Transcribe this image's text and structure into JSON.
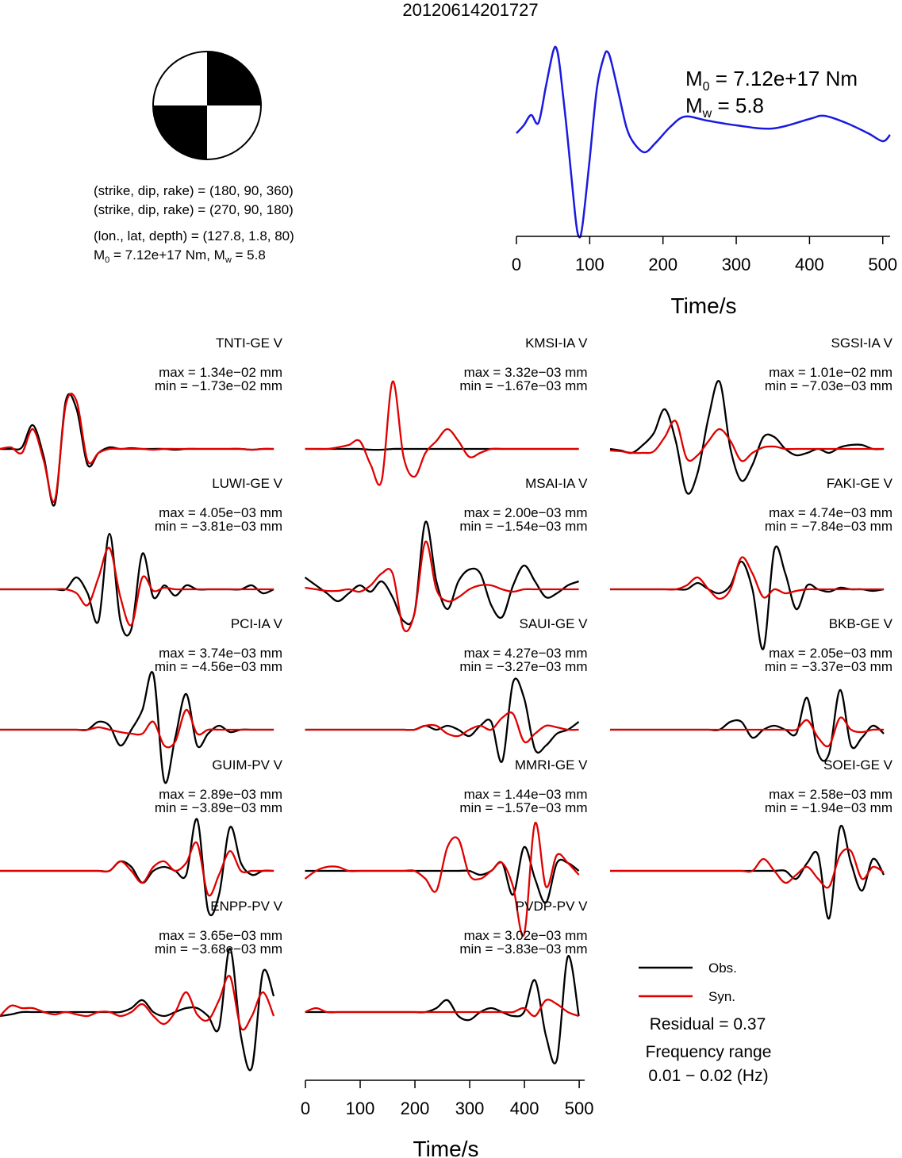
{
  "title": "20120614201727",
  "mechanism_text": [
    "(strike, dip, rake) = (180, 90, 360)",
    "(strike, dip, rake) = (270, 90, 180)",
    "(lon., lat, depth) = (127.8, 1.8, 80)"
  ],
  "moment_text": [
    "M",
    "0",
    " = 7.12e+17 Nm, M",
    "w",
    " = 5.8"
  ],
  "chart_data": [
    {
      "type": "line",
      "color": "#1a1ae0",
      "x": [
        0,
        10,
        20,
        30,
        40,
        50,
        55,
        60,
        70,
        80,
        85,
        90,
        100,
        110,
        120,
        125,
        130,
        140,
        150,
        160,
        175,
        190,
        210,
        230,
        260,
        300,
        350,
        400,
        420,
        450,
        480,
        500,
        510
      ],
      "values": [
        130,
        140,
        153,
        143,
        188,
        233,
        236,
        208,
        123,
        28,
        0,
        13,
        98,
        188,
        228,
        232,
        218,
        178,
        138,
        118,
        106,
        118,
        138,
        151,
        146,
        140,
        136,
        148,
        152,
        143,
        130,
        120,
        128
      ],
      "xlim": [
        0,
        510
      ],
      "xticks": [
        0,
        100,
        200,
        300,
        400,
        500
      ],
      "xlabel": "Time/s",
      "annotations": [
        [
          "M",
          "0",
          " = 7.12e+17 Nm"
        ],
        [
          "M",
          "w",
          " = 5.8"
        ]
      ]
    },
    {
      "type": "waveform",
      "xlim": [
        0,
        510
      ],
      "xticks": [
        0,
        100,
        200,
        300,
        400,
        500
      ],
      "xlabel": "Time/s",
      "x": [
        0,
        20,
        40,
        60,
        80,
        100,
        120,
        140,
        160,
        180,
        200,
        220,
        240,
        260,
        280,
        300,
        320,
        340,
        360,
        380,
        400,
        420,
        440,
        460,
        480,
        500
      ],
      "series": [
        {
          "name": "Obs.",
          "color": "#000000"
        },
        {
          "name": "Syn.",
          "color": "#e00000"
        }
      ],
      "stations": [
        {
          "label": "TNTI-GE V",
          "max": "max = 1.34e−02 mm",
          "min": "min = −1.73e−02 mm",
          "obs": [
            0,
            0,
            2,
            30,
            -10,
            -70,
            60,
            50,
            -20,
            -5,
            2,
            0,
            1,
            0,
            0,
            0,
            -1,
            0,
            0,
            0,
            0,
            0,
            0,
            -1,
            0,
            0
          ],
          "syn": [
            0,
            2,
            -5,
            25,
            -15,
            -65,
            55,
            60,
            -15,
            -5,
            0,
            0,
            0,
            0,
            -1,
            0,
            0,
            0,
            0,
            0,
            0,
            0,
            0,
            -1,
            0,
            0
          ]
        },
        {
          "label": "KMSI-IA V",
          "max": "max = 3.32e−03 mm",
          "min": "min = −1.67e−03 mm",
          "obs": [
            0,
            0,
            0,
            0,
            0,
            0,
            -1,
            -1,
            0,
            0,
            0,
            0,
            0,
            0,
            0,
            0,
            0,
            0,
            0,
            0,
            0,
            0,
            0,
            0,
            0,
            0
          ],
          "syn": [
            0,
            0,
            0,
            2,
            5,
            10,
            -20,
            -40,
            85,
            -10,
            -35,
            -5,
            10,
            25,
            10,
            -10,
            -5,
            0,
            0,
            0,
            0,
            0,
            0,
            0,
            0,
            0
          ]
        },
        {
          "label": "SGSI-IA V",
          "max": "max = 1.01e−02 mm",
          "min": "min = −7.03e−03 mm",
          "obs": [
            0,
            -2,
            -5,
            5,
            20,
            50,
            10,
            -55,
            -30,
            40,
            85,
            0,
            -40,
            -20,
            15,
            15,
            0,
            -8,
            -5,
            0,
            -5,
            2,
            5,
            5,
            0,
            0
          ],
          "syn": [
            -2,
            -3,
            -5,
            -5,
            -3,
            15,
            35,
            -12,
            -8,
            10,
            25,
            10,
            -15,
            -5,
            2,
            3,
            0,
            0,
            0,
            0,
            0,
            0,
            0,
            0,
            0,
            0
          ]
        },
        {
          "label": "LUWI-GE V",
          "max": "max = 4.05e−03 mm",
          "min": "min = −3.81e−03 mm",
          "obs": [
            0,
            0,
            0,
            0,
            0,
            0,
            0,
            15,
            -5,
            -40,
            70,
            -40,
            -50,
            45,
            -10,
            5,
            -8,
            5,
            0,
            0,
            0,
            0,
            0,
            5,
            -5,
            0
          ],
          "syn": [
            0,
            0,
            0,
            0,
            0,
            0,
            0,
            -5,
            -20,
            15,
            52,
            -10,
            -45,
            15,
            -2,
            2,
            0,
            0,
            0,
            0,
            0,
            0,
            0,
            0,
            0,
            0
          ]
        },
        {
          "label": "MSAI-IA V",
          "max": "max = 2.00e−03 mm",
          "min": "min = −1.54e−03 mm",
          "obs": [
            15,
            5,
            -5,
            -15,
            -5,
            5,
            -3,
            10,
            -10,
            -40,
            -30,
            85,
            10,
            -25,
            10,
            25,
            20,
            -20,
            -35,
            5,
            30,
            10,
            -10,
            -5,
            5,
            10
          ],
          "syn": [
            2,
            0,
            -2,
            -2,
            0,
            -3,
            5,
            20,
            20,
            -50,
            -30,
            60,
            0,
            -15,
            -10,
            0,
            5,
            5,
            0,
            -3,
            0,
            0,
            0,
            0,
            0,
            0
          ]
        },
        {
          "label": "FAKI-GE V",
          "max": "max = 4.74e−03 mm",
          "min": "min = −7.84e−03 mm",
          "obs": [
            0,
            0,
            0,
            0,
            0,
            0,
            0,
            0,
            8,
            0,
            -5,
            5,
            35,
            0,
            -75,
            50,
            20,
            -25,
            5,
            0,
            -3,
            2,
            0,
            0,
            -2,
            0
          ],
          "syn": [
            0,
            0,
            0,
            0,
            0,
            0,
            0,
            5,
            15,
            0,
            -12,
            0,
            40,
            20,
            -10,
            0,
            -5,
            -2,
            0,
            0,
            0,
            0,
            0,
            0,
            0,
            0
          ]
        },
        {
          "label": "PCI-IA V",
          "max": "max = 3.74e−03 mm",
          "min": "min = −4.56e−03 mm",
          "obs": [
            0,
            0,
            0,
            0,
            0,
            0,
            0,
            0,
            0,
            10,
            5,
            -20,
            0,
            25,
            70,
            -65,
            -10,
            45,
            -20,
            -5,
            5,
            -3,
            0,
            0,
            0,
            0
          ],
          "syn": [
            0,
            0,
            0,
            0,
            0,
            0,
            0,
            0,
            0,
            3,
            0,
            -3,
            -5,
            -5,
            10,
            -20,
            -15,
            25,
            -5,
            0,
            0,
            0,
            0,
            0,
            0,
            0
          ]
        },
        {
          "label": "SAUI-GE V",
          "max": "max = 4.27e−03 mm",
          "min": "min = −3.27e−03 mm",
          "obs": [
            0,
            0,
            0,
            0,
            0,
            0,
            0,
            0,
            0,
            0,
            0,
            5,
            0,
            5,
            0,
            -8,
            5,
            10,
            -40,
            60,
            40,
            -25,
            -20,
            -5,
            0,
            10
          ],
          "syn": [
            0,
            0,
            0,
            0,
            0,
            0,
            0,
            0,
            0,
            0,
            0,
            5,
            5,
            -5,
            -8,
            0,
            5,
            0,
            15,
            20,
            -15,
            -5,
            5,
            3,
            0,
            0
          ]
        },
        {
          "label": "BKB-GE V",
          "max": "max = 2.05e−03 mm",
          "min": "min = −3.37e−03 mm",
          "obs": [
            0,
            0,
            0,
            0,
            0,
            0,
            0,
            0,
            0,
            0,
            0,
            10,
            10,
            -10,
            0,
            5,
            0,
            -5,
            40,
            -30,
            -30,
            50,
            -20,
            -10,
            5,
            -5
          ],
          "syn": [
            0,
            0,
            0,
            0,
            0,
            0,
            0,
            0,
            0,
            0,
            0,
            0,
            0,
            0,
            0,
            0,
            0,
            0,
            12,
            -10,
            -20,
            15,
            0,
            -3,
            0,
            0
          ]
        },
        {
          "label": "GUIM-PV V",
          "max": "max = 2.89e−03 mm",
          "min": "min = −3.89e−03 mm",
          "obs": [
            0,
            0,
            0,
            0,
            0,
            0,
            0,
            0,
            0,
            0,
            0,
            12,
            5,
            -15,
            0,
            5,
            0,
            -5,
            65,
            -50,
            -30,
            55,
            10,
            -5,
            0,
            0
          ],
          "syn": [
            0,
            0,
            0,
            0,
            0,
            0,
            0,
            0,
            0,
            0,
            0,
            12,
            0,
            -15,
            5,
            12,
            0,
            10,
            35,
            -30,
            -5,
            25,
            0,
            0,
            0,
            0
          ]
        },
        {
          "label": "MMRI-GE V",
          "max": "max = 1.44e−03 mm",
          "min": "min = −1.57e−03 mm",
          "obs": [
            0,
            0,
            0,
            0,
            0,
            0,
            0,
            0,
            0,
            0,
            0,
            0,
            0,
            0,
            0,
            0,
            -5,
            0,
            10,
            -30,
            30,
            -10,
            -40,
            10,
            10,
            0
          ],
          "syn": [
            -10,
            0,
            5,
            5,
            0,
            0,
            0,
            0,
            0,
            0,
            0,
            -10,
            -25,
            30,
            40,
            -5,
            -10,
            0,
            10,
            -20,
            -80,
            60,
            -20,
            20,
            10,
            -5
          ]
        },
        {
          "label": "SOEI-GE V",
          "max": "max = 2.58e−03 mm",
          "min": "min = −1.94e−03 mm",
          "obs": [
            0,
            0,
            0,
            0,
            0,
            0,
            0,
            0,
            0,
            0,
            0,
            0,
            0,
            0,
            0,
            0,
            0,
            -10,
            10,
            20,
            -60,
            55,
            10,
            -25,
            15,
            -5
          ],
          "syn": [
            0,
            0,
            0,
            0,
            0,
            0,
            0,
            0,
            0,
            0,
            0,
            0,
            0,
            0,
            15,
            0,
            -15,
            -5,
            5,
            -10,
            -20,
            20,
            25,
            -10,
            5,
            -2
          ]
        },
        {
          "label": "ENPP-PV V",
          "max": "max = 3.65e−03 mm",
          "min": "min = −3.68e−03 mm",
          "obs": [
            -5,
            -3,
            0,
            0,
            0,
            0,
            0,
            0,
            0,
            0,
            0,
            0,
            5,
            15,
            0,
            -5,
            0,
            5,
            5,
            -5,
            -20,
            80,
            -30,
            -70,
            50,
            20
          ],
          "syn": [
            -5,
            8,
            5,
            5,
            0,
            -3,
            0,
            -3,
            -5,
            0,
            0,
            -5,
            0,
            10,
            -5,
            -15,
            0,
            25,
            -3,
            -10,
            15,
            45,
            -20,
            -5,
            25,
            -5
          ]
        },
        {
          "label": "PVDP-PV V",
          "max": "max = 3.02e−03 mm",
          "min": "min = −3.83e−03 mm",
          "obs": [
            0,
            0,
            0,
            0,
            0,
            0,
            0,
            0,
            0,
            0,
            0,
            0,
            5,
            15,
            -5,
            -10,
            0,
            5,
            0,
            -5,
            0,
            40,
            -30,
            -60,
            70,
            -5
          ],
          "syn": [
            0,
            5,
            0,
            0,
            0,
            0,
            0,
            0,
            0,
            0,
            0,
            0,
            0,
            0,
            0,
            0,
            0,
            0,
            0,
            0,
            5,
            -5,
            15,
            10,
            0,
            -5
          ]
        }
      ],
      "residual": "Residual = 0.37",
      "frequency_range": [
        "Frequency range",
        "0.01 − 0.02 (Hz)"
      ]
    }
  ]
}
